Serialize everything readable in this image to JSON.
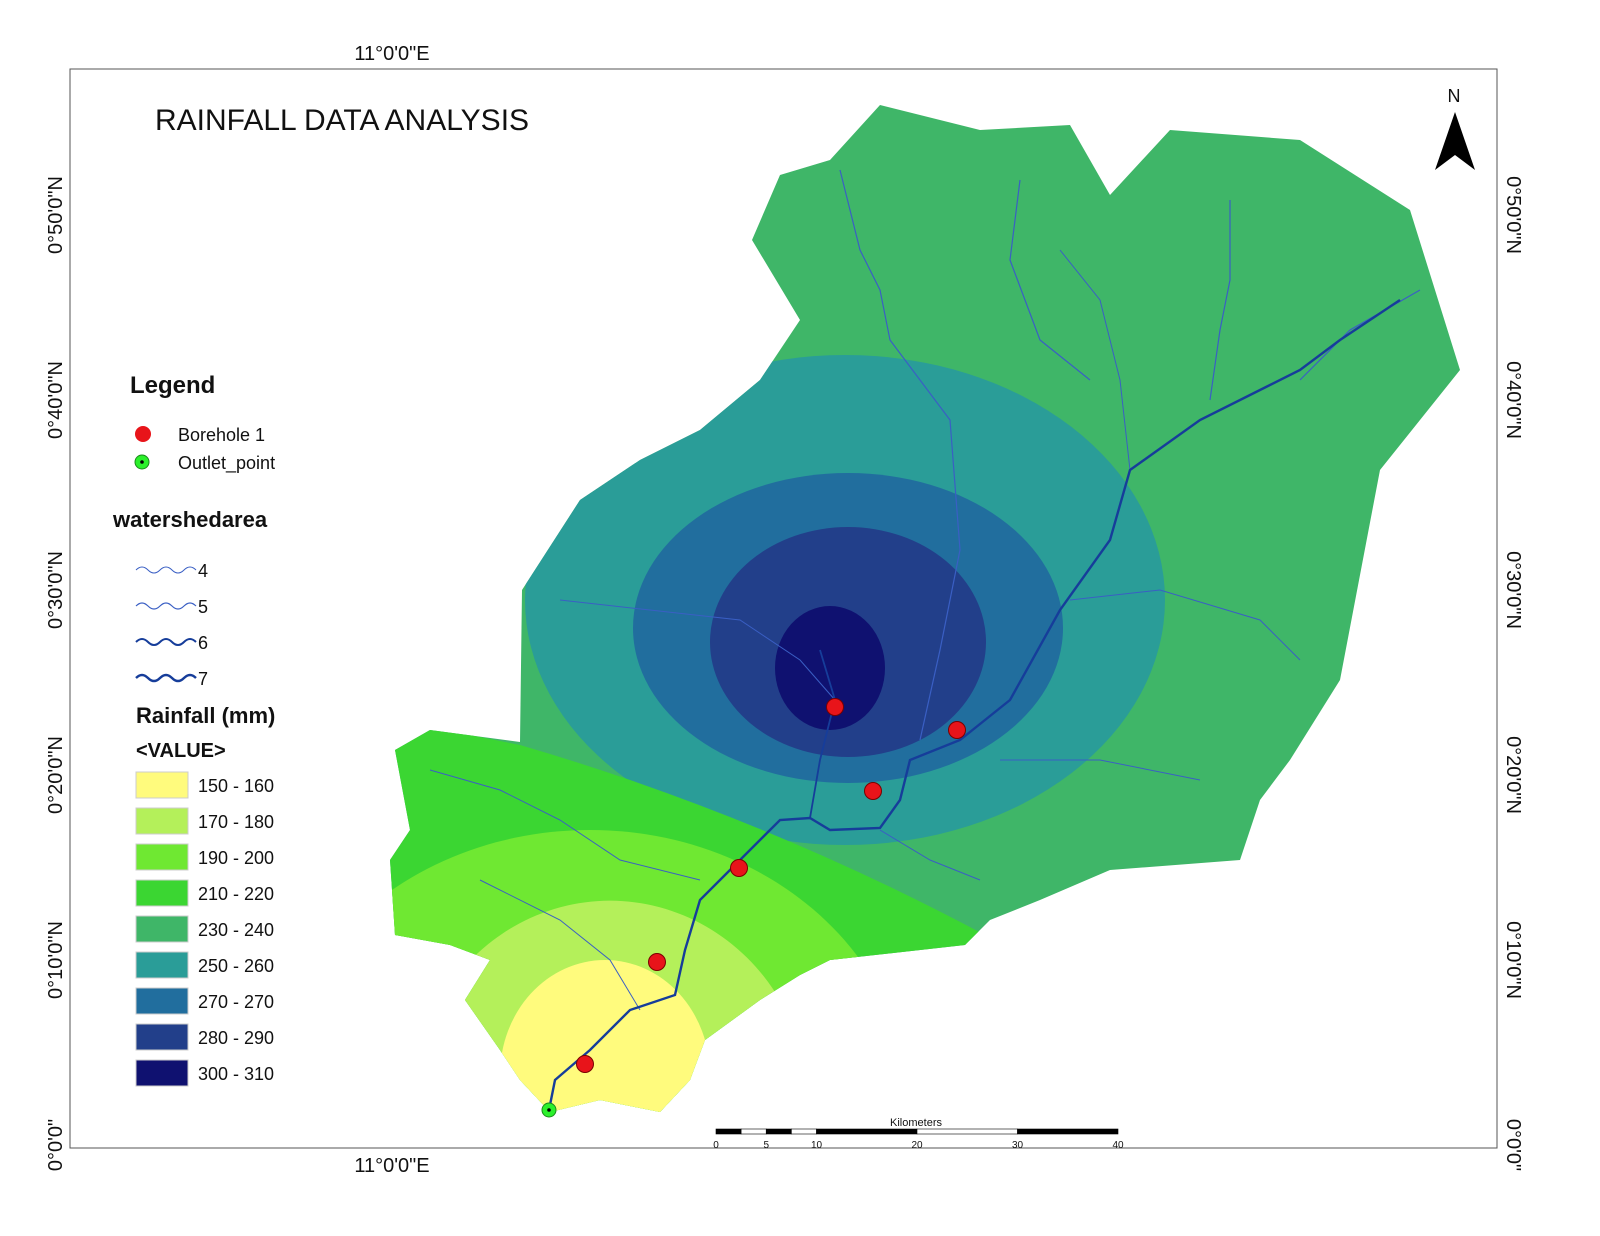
{
  "title": "RAINFALL DATA ANALYSIS",
  "north_label": "N",
  "graticule": {
    "top": "11°0'0\"E",
    "bottom": "11°0'0\"E",
    "lat": [
      "0°50'0\"N",
      "0°40'0\"N",
      "0°30'0\"N",
      "0°20'0\"N",
      "0°10'0\"N",
      "0°0'0\""
    ]
  },
  "legend": {
    "heading": "Legend",
    "borehole": "Borehole 1",
    "outlet": "Outlet_point",
    "streams_heading": "watershedarea",
    "streams": [
      "4",
      "5",
      "6",
      "7"
    ],
    "rain_heading": "Rainfall (mm)",
    "rain_sub": "<VALUE>",
    "classes": [
      {
        "label": "150 - 160",
        "color": "#fffb7d"
      },
      {
        "label": "170 - 180",
        "color": "#b4f05a"
      },
      {
        "label": "190 - 200",
        "color": "#6fe832"
      },
      {
        "label": "210 - 220",
        "color": "#3bd632"
      },
      {
        "label": "230 - 240",
        "color": "#3fb668"
      },
      {
        "label": "250 - 260",
        "color": "#2a9d98"
      },
      {
        "label": "270 - 270",
        "color": "#216e9e"
      },
      {
        "label": "280 - 290",
        "color": "#223f8a"
      },
      {
        "label": "300 - 310",
        "color": "#0f1170"
      }
    ]
  },
  "scale": {
    "unit": "Kilometers",
    "ticks": [
      "0",
      "5",
      "10",
      "20",
      "30",
      "40"
    ]
  },
  "colors": {
    "borehole": "#e8141a",
    "outlet": "#2bf02b",
    "stream": "#3a5fc4",
    "main_stream": "#163d9a"
  }
}
